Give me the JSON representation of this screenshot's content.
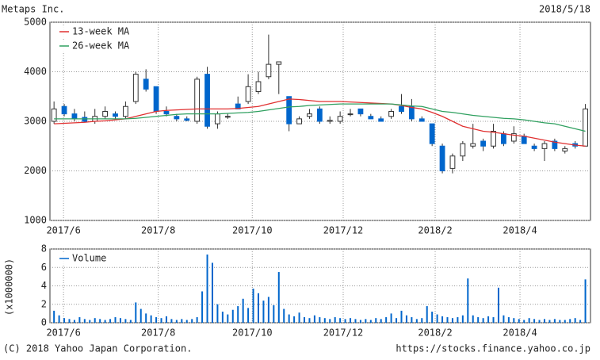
{
  "chart_data": [
    {
      "type": "candlestick",
      "title": "Metaps Inc.",
      "date": "2018/5/18",
      "x": [
        0,
        1,
        2,
        3,
        4,
        5,
        6,
        7,
        8,
        9,
        10,
        11,
        12,
        13,
        14,
        15,
        16,
        17,
        18,
        19,
        20,
        21,
        22,
        23,
        24,
        25,
        26,
        27,
        28,
        29,
        30,
        31,
        32,
        33,
        34,
        35,
        36,
        37,
        38,
        39,
        40,
        41,
        42,
        43,
        44,
        45,
        46,
        47,
        48,
        49,
        50,
        51,
        52
      ],
      "open": [
        3000,
        3300,
        3150,
        3080,
        3000,
        3100,
        3150,
        3100,
        3400,
        3850,
        3700,
        3200,
        3100,
        3050,
        3000,
        3950,
        2950,
        3100,
        3350,
        3400,
        3600,
        3900,
        4150,
        3500,
        2950,
        3100,
        3250,
        3000,
        3000,
        3150,
        3250,
        3100,
        3050,
        3100,
        3300,
        3300,
        3050,
        2950,
        2500,
        2050,
        2300,
        2500,
        2600,
        2500,
        2750,
        2600,
        2700,
        2500,
        2450,
        2600,
        2400,
        2550,
        2500
      ],
      "high": [
        3400,
        3350,
        3250,
        3200,
        3250,
        3300,
        3200,
        3400,
        4000,
        4050,
        3700,
        3300,
        3150,
        3100,
        3900,
        4100,
        3200,
        3150,
        3500,
        3950,
        4000,
        4750,
        4200,
        3500,
        3100,
        3250,
        3300,
        3100,
        3200,
        3250,
        3250,
        3150,
        3100,
        3250,
        3550,
        3450,
        3100,
        2950,
        2550,
        2350,
        2600,
        2950,
        2650,
        2950,
        2800,
        2900,
        2750,
        2550,
        2600,
        2650,
        2500,
        2600,
        3350
      ],
      "low": [
        2950,
        3100,
        3000,
        2980,
        2950,
        3050,
        3050,
        3050,
        3350,
        3600,
        3150,
        3100,
        3000,
        3000,
        2950,
        2850,
        2850,
        3050,
        3250,
        3350,
        3550,
        3850,
        3550,
        2800,
        2950,
        3050,
        2950,
        2950,
        2950,
        3100,
        3100,
        3050,
        3000,
        3050,
        3150,
        3000,
        3000,
        2500,
        1950,
        1950,
        2200,
        2450,
        2400,
        2450,
        2500,
        2550,
        2550,
        2400,
        2200,
        2400,
        2350,
        2450,
        2500
      ],
      "close": [
        3250,
        3150,
        3050,
        3000,
        3100,
        3200,
        3100,
        3300,
        3950,
        3650,
        3200,
        3150,
        3050,
        3020,
        3850,
        2900,
        3150,
        3100,
        3250,
        3700,
        3800,
        4150,
        4200,
        2950,
        3050,
        3150,
        3000,
        3020,
        3100,
        3150,
        3150,
        3050,
        3000,
        3200,
        3200,
        3050,
        3000,
        2550,
        2000,
        2300,
        2550,
        2550,
        2500,
        2800,
        2550,
        2750,
        2550,
        2450,
        2550,
        2450,
        2450,
        2500,
        3250
      ],
      "up_color": "#ffffff",
      "down_color": "#0066cc",
      "edge_color": "#333333",
      "series": [
        {
          "name": "13-week MA",
          "color": "#e03030",
          "values": [
            2950,
            2960,
            2970,
            2980,
            3000,
            3010,
            3030,
            3050,
            3100,
            3150,
            3200,
            3220,
            3230,
            3240,
            3250,
            3250,
            3250,
            3250,
            3260,
            3280,
            3300,
            3350,
            3400,
            3450,
            3440,
            3420,
            3400,
            3400,
            3400,
            3390,
            3380,
            3370,
            3360,
            3350,
            3320,
            3280,
            3250,
            3180,
            3100,
            3000,
            2900,
            2850,
            2800,
            2780,
            2750,
            2720,
            2700,
            2660,
            2620,
            2580,
            2550,
            2520,
            2500
          ]
        },
        {
          "name": "26-week MA",
          "color": "#30a060",
          "values": [
            3050,
            3050,
            3050,
            3050,
            3050,
            3050,
            3050,
            3050,
            3060,
            3080,
            3100,
            3120,
            3140,
            3150,
            3150,
            3150,
            3150,
            3160,
            3170,
            3180,
            3200,
            3230,
            3260,
            3290,
            3300,
            3320,
            3330,
            3340,
            3350,
            3350,
            3350,
            3350,
            3350,
            3350,
            3330,
            3310,
            3300,
            3250,
            3200,
            3180,
            3150,
            3120,
            3100,
            3080,
            3060,
            3050,
            3030,
            3000,
            2970,
            2950,
            2900,
            2850,
            2800
          ]
        }
      ],
      "legend": "upper left",
      "grid": true,
      "xlim": [
        -0.4,
        52.5
      ],
      "ylim": [
        1000,
        5000
      ],
      "yticks": [
        1000,
        2000,
        3000,
        4000,
        5000
      ],
      "xticks": [
        {
          "value": 0.93,
          "label": "2017/6"
        },
        {
          "value": 10.2,
          "label": "2017/8"
        },
        {
          "value": 19.4,
          "label": "2017/10"
        },
        {
          "value": 28.3,
          "label": "2017/12"
        },
        {
          "value": 37.3,
          "label": "2018/2"
        },
        {
          "value": 45.6,
          "label": "2018/4"
        }
      ]
    },
    {
      "type": "bar",
      "y_label": "(x1000000)",
      "x": [
        0,
        0.5,
        1,
        1.5,
        2,
        2.5,
        3,
        3.5,
        4,
        4.5,
        5,
        5.5,
        6,
        6.5,
        7,
        7.5,
        8,
        8.5,
        9,
        9.5,
        10,
        10.5,
        11,
        11.5,
        12,
        12.5,
        13,
        13.5,
        14,
        14.5,
        15,
        15.5,
        16,
        16.5,
        17,
        17.5,
        18,
        18.5,
        19,
        19.5,
        20,
        20.5,
        21,
        21.5,
        22,
        22.5,
        23,
        23.5,
        24,
        24.5,
        25,
        25.5,
        26,
        26.5,
        27,
        27.5,
        28,
        28.5,
        29,
        29.5,
        30,
        30.5,
        31,
        31.5,
        32,
        32.5,
        33,
        33.5,
        34,
        34.5,
        35,
        35.5,
        36,
        36.5,
        37,
        37.5,
        38,
        38.5,
        39,
        39.5,
        40,
        40.5,
        41,
        41.5,
        42,
        42.5,
        43,
        43.5,
        44,
        44.5,
        45,
        45.5,
        46,
        46.5,
        47,
        47.5,
        48,
        48.5,
        49,
        49.5,
        50,
        50.5,
        51,
        51.5,
        52
      ],
      "series": [
        {
          "name": "Volume",
          "color": "#0066cc",
          "values": [
            1.3,
            0.8,
            0.5,
            0.4,
            0.3,
            0.6,
            0.4,
            0.3,
            0.5,
            0.4,
            0.3,
            0.4,
            0.6,
            0.5,
            0.4,
            0.3,
            2.2,
            1.5,
            1.0,
            0.8,
            0.6,
            0.5,
            0.7,
            0.4,
            0.3,
            0.4,
            0.3,
            0.4,
            0.6,
            3.4,
            7.4,
            6.5,
            2.0,
            1.2,
            0.9,
            1.4,
            1.8,
            2.6,
            1.6,
            3.7,
            3.2,
            2.4,
            2.8,
            1.9,
            5.5,
            1.5,
            0.9,
            0.7,
            1.1,
            0.6,
            0.5,
            0.8,
            0.6,
            0.5,
            0.4,
            0.6,
            0.5,
            0.4,
            0.5,
            0.4,
            0.3,
            0.4,
            0.3,
            0.5,
            0.4,
            0.6,
            1.0,
            0.5,
            1.3,
            0.8,
            0.6,
            0.4,
            0.5,
            1.8,
            1.2,
            0.9,
            0.7,
            0.6,
            0.5,
            0.6,
            0.8,
            4.8,
            0.8,
            0.6,
            0.5,
            0.7,
            0.6,
            3.8,
            0.8,
            0.6,
            0.5,
            0.4,
            0.3,
            0.5,
            0.4,
            0.3,
            0.4,
            0.3,
            0.4,
            0.3,
            0.3,
            0.4,
            0.5,
            0.3,
            4.7
          ]
        }
      ],
      "legend": "upper left",
      "grid": true,
      "xlim": [
        -0.4,
        52.5
      ],
      "ylim": [
        0,
        8
      ],
      "yticks": [
        0,
        2,
        4,
        6,
        8
      ],
      "xticks": [
        {
          "value": 0.93,
          "label": "2017/6"
        },
        {
          "value": 10.2,
          "label": "2017/8"
        },
        {
          "value": 19.4,
          "label": "2017/10"
        },
        {
          "value": 28.3,
          "label": "2017/12"
        },
        {
          "value": 37.3,
          "label": "2018/2"
        },
        {
          "value": 45.6,
          "label": "2018/4"
        }
      ]
    }
  ],
  "copyright": "(C) 2018 Yahoo Japan Corporation.",
  "url": "https://stocks.finance.yahoo.co.jp"
}
